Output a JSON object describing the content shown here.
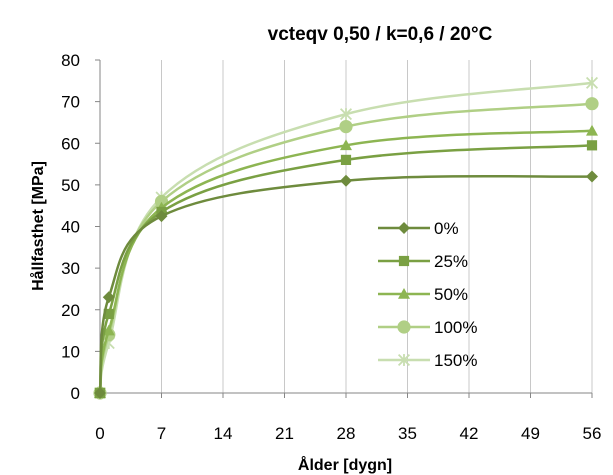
{
  "chart_data": {
    "type": "line",
    "title": "vcteqv 0,50 / k=0,6 / 20°C",
    "xlabel": "Ålder [dygn]",
    "ylabel": "Hållfasthet  [MPa]",
    "x_ticks": [
      0,
      7,
      14,
      21,
      28,
      35,
      42,
      49,
      56
    ],
    "y_ticks": [
      0,
      10,
      20,
      30,
      40,
      50,
      60,
      70,
      80
    ],
    "xlim": [
      0,
      56
    ],
    "ylim": [
      0,
      80
    ],
    "grid": "vertical",
    "legend_position": "center-right",
    "x": [
      0,
      1,
      7,
      28,
      56
    ],
    "series": [
      {
        "name": "0%",
        "values": [
          0,
          23,
          42.5,
          51,
          52
        ],
        "color": "#6e8b3d",
        "marker": "diamond"
      },
      {
        "name": "25%",
        "values": [
          0,
          19,
          43.5,
          56,
          59.5
        ],
        "color": "#7aa043",
        "marker": "square"
      },
      {
        "name": "50%",
        "values": [
          0,
          15,
          44.5,
          59.5,
          63
        ],
        "color": "#8db552",
        "marker": "triangle"
      },
      {
        "name": "100%",
        "values": [
          0,
          14,
          46,
          64,
          69.5
        ],
        "color": "#b0cf85",
        "marker": "circle"
      },
      {
        "name": "150%",
        "values": [
          0,
          12,
          47,
          67,
          74.5
        ],
        "color": "#c8deb0",
        "marker": "star"
      }
    ]
  }
}
